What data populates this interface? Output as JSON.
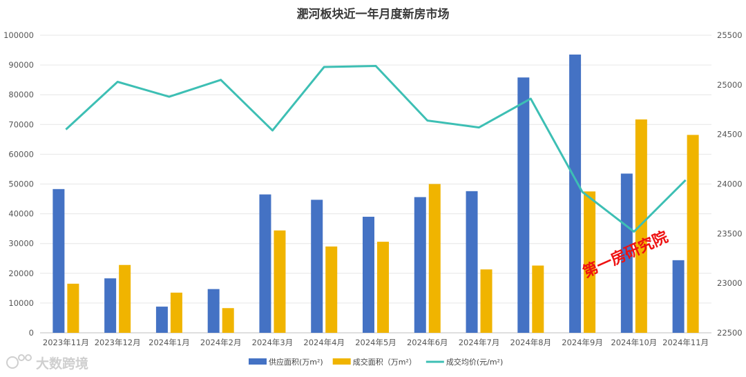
{
  "chart_data": {
    "type": "bar",
    "title": "淝河板块近一年月度新房市场",
    "categories": [
      "2023年11月",
      "2023年12月",
      "2024年1月",
      "2024年2月",
      "2024年3月",
      "2024年4月",
      "2024年5月",
      "2024年6月",
      "2024年7月",
      "2024年8月",
      "2024年9月",
      "2024年10月",
      "2024年11月"
    ],
    "series": [
      {
        "name": "供应面积(万m²)",
        "kind": "bar",
        "axis": "left",
        "color": "#4472C4",
        "values": [
          48300,
          18300,
          8800,
          14700,
          46500,
          44700,
          39000,
          45600,
          47600,
          85800,
          93500,
          53500,
          24400
        ]
      },
      {
        "name": "成交面积（万m²）",
        "kind": "bar",
        "axis": "left",
        "color": "#F0B400",
        "values": [
          16500,
          22800,
          13500,
          8300,
          34400,
          29000,
          30600,
          50000,
          21300,
          22600,
          47500,
          71700,
          66500
        ]
      },
      {
        "name": "成交均价(元/m²)",
        "kind": "line",
        "axis": "right",
        "color": "#3DBFB4",
        "values": [
          24550,
          25030,
          24880,
          25050,
          24540,
          25180,
          25190,
          24640,
          24570,
          24860,
          23920,
          23520,
          24040
        ]
      }
    ],
    "y_left": {
      "min": 0,
      "max": 100000,
      "ticks": [
        "0",
        "10000",
        "20000",
        "30000",
        "40000",
        "50000",
        "60000",
        "70000",
        "80000",
        "90000",
        "100000"
      ]
    },
    "y_right": {
      "min": 22500,
      "max": 25500,
      "ticks": [
        "22500",
        "23000",
        "23500",
        "24000",
        "24500",
        "25000",
        "25500"
      ]
    },
    "grid": true,
    "legend_position": "bottom"
  },
  "watermarks": {
    "center_text": "第一房研究院",
    "bottom_left_text": "大数跨境",
    "bottom_left_logo": "dashuju-logo-icon"
  }
}
